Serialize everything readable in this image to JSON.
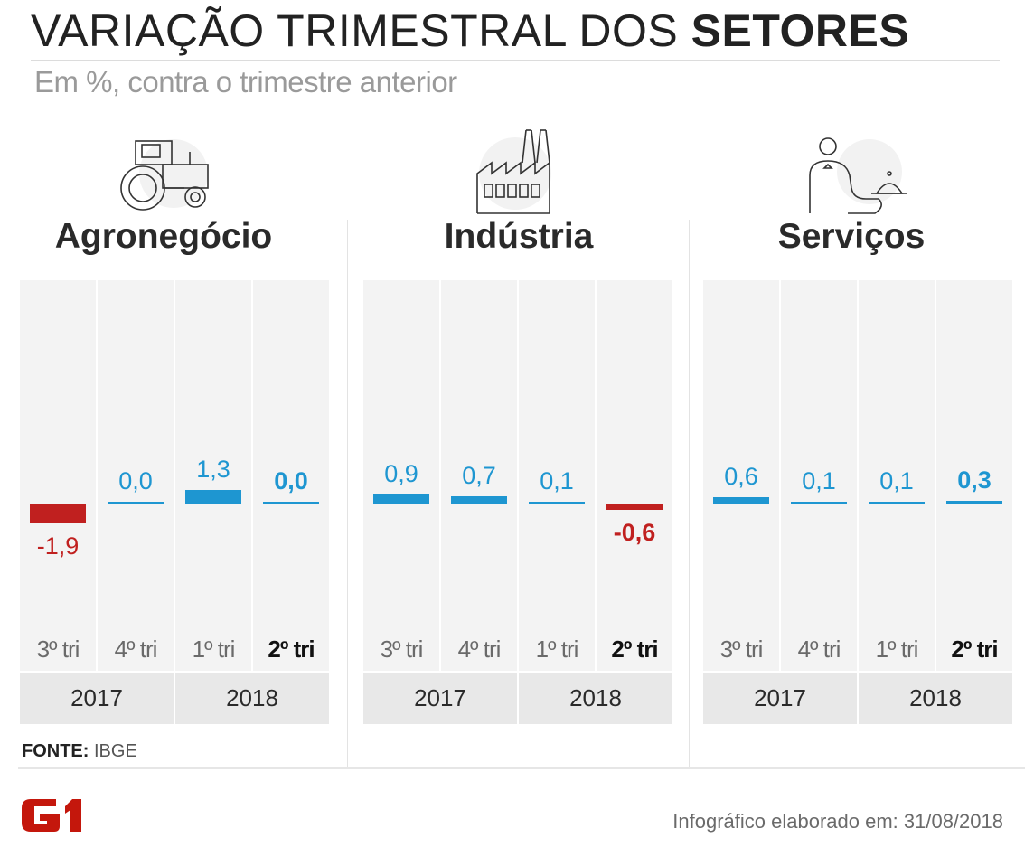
{
  "title": {
    "normal": "VARIAÇÃO TRIMESTRAL DOS",
    "bold": "SETORES"
  },
  "subtitle": "Em %, contra o trimestre anterior",
  "colors": {
    "positive": "#1e96d1",
    "negative": "#c0201f",
    "column_bg": "#f3f3f3",
    "year_bg": "#e8e8e8"
  },
  "chart_data": [
    {
      "type": "bar",
      "title": "Agronegócio",
      "icon": "tractor-icon",
      "categories": [
        "3º tri",
        "4º tri",
        "1º tri",
        "2º tri"
      ],
      "values": [
        -1.9,
        0.0,
        1.3,
        0.0
      ],
      "value_labels": [
        "-1,9",
        "0,0",
        "1,3",
        "0,0"
      ],
      "years": [
        "2017",
        "2018"
      ]
    },
    {
      "type": "bar",
      "title": "Indústria",
      "icon": "factory-icon",
      "categories": [
        "3º tri",
        "4º tri",
        "1º tri",
        "2º tri"
      ],
      "values": [
        0.9,
        0.7,
        0.1,
        -0.6
      ],
      "value_labels": [
        "0,9",
        "0,7",
        "0,1",
        "-0,6"
      ],
      "years": [
        "2017",
        "2018"
      ]
    },
    {
      "type": "bar",
      "title": "Serviços",
      "icon": "waiter-icon",
      "categories": [
        "3º tri",
        "4º tri",
        "1º tri",
        "2º tri"
      ],
      "values": [
        0.6,
        0.1,
        0.1,
        0.3
      ],
      "value_labels": [
        "0,6",
        "0,1",
        "0,1",
        "0,3"
      ],
      "years": [
        "2017",
        "2018"
      ]
    }
  ],
  "source": {
    "label": "FONTE:",
    "value": "IBGE"
  },
  "logo": "G1",
  "footer": "Infográfico elaborado em: 31/08/2018"
}
